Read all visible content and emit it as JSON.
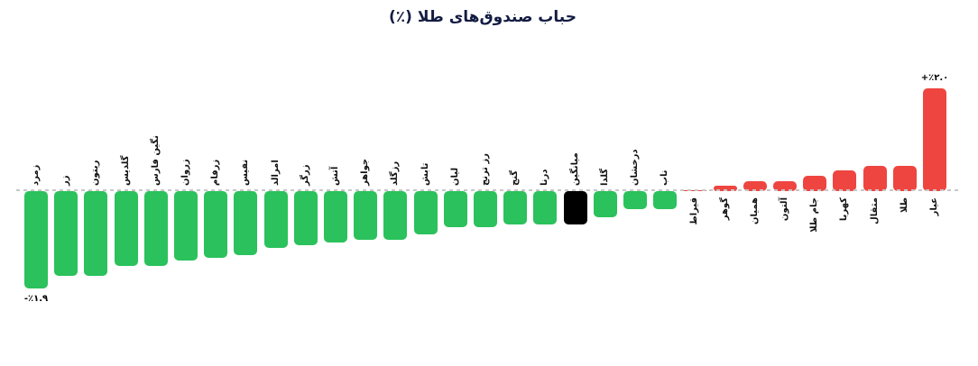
{
  "title": "حباب صندوق‌های طلا (٪)",
  "colors": {
    "positive": "#EE4540",
    "negative": "#2BC15C",
    "mean": "#000000",
    "baseline": "#c7c7c7",
    "title_text": "#131C42",
    "label_text": "#111111"
  },
  "chart_data": {
    "type": "bar",
    "title": "حباب صندوق‌های طلا (٪)",
    "xlabel": "",
    "ylabel": "",
    "unit": "%",
    "baseline": 0,
    "ylim": [
      -2.2,
      2.4
    ],
    "grid": false,
    "legend": "none",
    "bar_color_rule": "negative=green, positive=red, mean=black",
    "points": [
      {
        "label": "زمرد",
        "value": -1.9,
        "annotation": "-٪۱.۹"
      },
      {
        "label": "زر",
        "value": -1.65
      },
      {
        "label": "ریتون",
        "value": -1.65
      },
      {
        "label": "گلدیس",
        "value": -1.45
      },
      {
        "label": "نگین فارس",
        "value": -1.45
      },
      {
        "label": "زروان",
        "value": -1.35
      },
      {
        "label": "زرفام",
        "value": -1.3
      },
      {
        "label": "نفیس",
        "value": -1.25
      },
      {
        "label": "امرالد",
        "value": -1.1
      },
      {
        "label": "زرگر",
        "value": -1.05
      },
      {
        "label": "آتش",
        "value": -1.0
      },
      {
        "label": "جواهر",
        "value": -0.95
      },
      {
        "label": "رزگلد",
        "value": -0.95
      },
      {
        "label": "تابش",
        "value": -0.85
      },
      {
        "label": "لیان",
        "value": -0.7
      },
      {
        "label": "رز ترنج",
        "value": -0.7
      },
      {
        "label": "گنج",
        "value": -0.65
      },
      {
        "label": "درنا",
        "value": -0.65
      },
      {
        "label": "میانگین",
        "value": -0.65,
        "mean": true
      },
      {
        "label": "گلدا",
        "value": -0.5
      },
      {
        "label": "درخشان",
        "value": -0.35
      },
      {
        "label": "ناب",
        "value": -0.35
      },
      {
        "label": "قیراط",
        "value": 0.0
      },
      {
        "label": "گوهر",
        "value": 0.1
      },
      {
        "label": "همیان",
        "value": 0.2
      },
      {
        "label": "آلتون",
        "value": 0.2
      },
      {
        "label": "جام طلا",
        "value": 0.3
      },
      {
        "label": "کهربا",
        "value": 0.4
      },
      {
        "label": "مثقال",
        "value": 0.5
      },
      {
        "label": "طلا",
        "value": 0.5
      },
      {
        "label": "عیار",
        "value": 2.0,
        "annotation": "+٪۲.۰"
      }
    ]
  }
}
